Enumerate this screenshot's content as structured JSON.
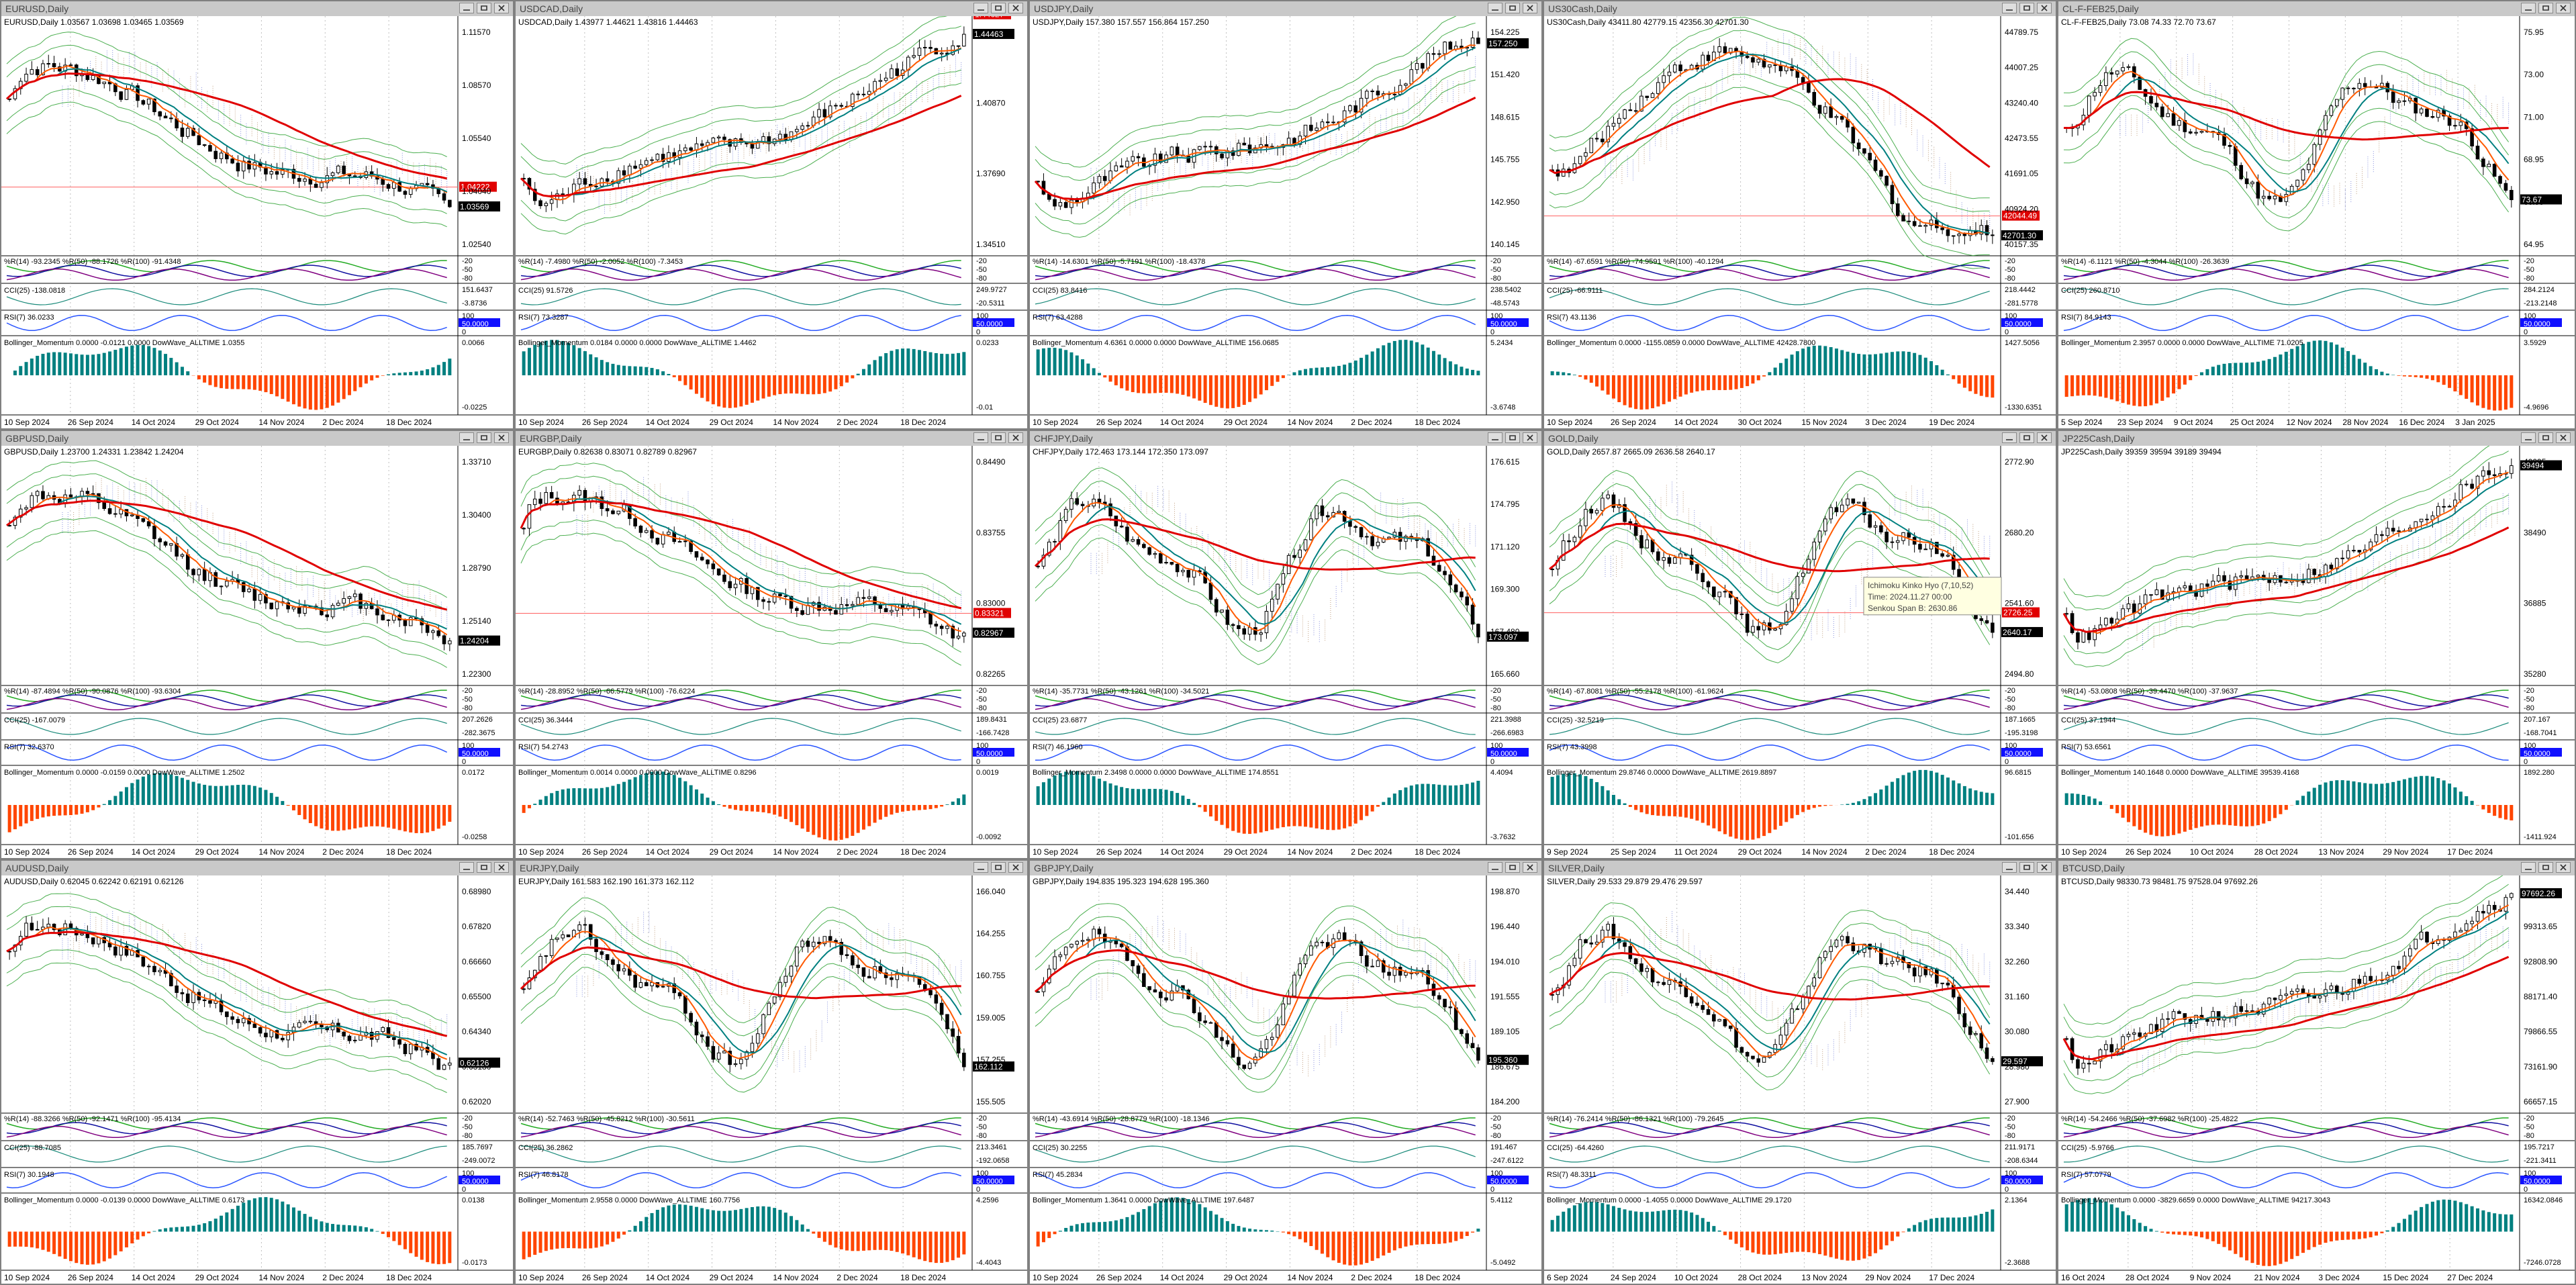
{
  "screen": {
    "title": "MetaTrader 4 - 15 chart windows (Daily)"
  },
  "colors": {
    "ma_red": "#e00000",
    "ma_orange": "#ff5a00",
    "ma_teal": "#008080",
    "envelope": "#4caf50",
    "cloud_brown": "#b48a64",
    "cloud_blue": "#6b77d6",
    "momentum_teal": "#008080",
    "momentum_orange": "#ff4500",
    "wpr_green": "#22aa22",
    "wpr_blue": "#1010a0",
    "wpr_purple": "#800080",
    "rsi_blue": "#2a55ff",
    "cci": "#1a8a7a",
    "price_label": "#000000",
    "level_label": "#e00000",
    "level_line": "#ff6060"
  },
  "window_controls": {
    "minimize_icon": "minimize-icon",
    "restore_icon": "restore-icon",
    "close_icon": "close-icon"
  },
  "charts": [
    {
      "title": "EURUSD,Daily",
      "ohlc": "EURUSD,Daily  1.03567 1.03698 1.03465 1.03569",
      "price_labels": [
        "1.11570",
        "1.08570",
        "1.05540",
        "1.04040",
        "1.02540"
      ],
      "current_price": "1.03569",
      "level_price": "1.04222",
      "wpr": "%R(14) -93.2345  %R(50) -88.1726  %R(100) -91.4348",
      "wpr_scale": [
        "-20",
        "-50",
        "-80"
      ],
      "cci": "CCI(25) -138.0818",
      "cci_scale": [
        "151.6437",
        "-3.8736"
      ],
      "rsi": "RSI(7) 36.0233",
      "rsi_scale": [
        "100",
        "50.0000",
        "0"
      ],
      "momentum": "Bollinger_Momentum 0.0000 -0.0121 0.0000  DowWave_ALLTIME 1.0355",
      "momentum_scale": [
        "0.0066",
        "-0.0225"
      ],
      "dates": [
        "10 Sep 2024",
        "26 Sep 2024",
        "14 Oct 2024",
        "29 Oct 2024",
        "14 Nov 2024",
        "2 Dec 2024",
        "18 Dec 2024"
      ],
      "trend": "down"
    },
    {
      "title": "USDCAD,Daily",
      "ohlc": "USDCAD,Daily  1.43977 1.44621 1.43816 1.44463",
      "price_labels": [
        "1.44200",
        "1.40870",
        "1.37690",
        "1.34510"
      ],
      "current_price": "1.44463",
      "level_price": "1.44627",
      "wpr": "%R(14) -7.4980  %R(50) -2.0052  %R(100) -7.3453",
      "wpr_scale": [
        "-20",
        "-50",
        "-80"
      ],
      "cci": "CCI(25) 91.5726",
      "cci_scale": [
        "249.9727",
        "-20.5311"
      ],
      "rsi": "RSI(7) 73.3287",
      "rsi_scale": [
        "100",
        "50.0000",
        "0"
      ],
      "momentum": "Bollinger_Momentum 0.0184 0.0000 0.0000  DowWave_ALLTIME 1.4462",
      "momentum_scale": [
        "0.0233",
        "-0.01"
      ],
      "dates": [
        "10 Sep 2024",
        "26 Sep 2024",
        "14 Oct 2024",
        "29 Oct 2024",
        "14 Nov 2024",
        "2 Dec 2024",
        "18 Dec 2024"
      ],
      "trend": "up"
    },
    {
      "title": "USDJPY,Daily",
      "ohlc": "USDJPY,Daily  157.380 157.557 156.864 157.250",
      "price_labels": [
        "154.225",
        "151.420",
        "148.615",
        "145.755",
        "142.950",
        "140.145"
      ],
      "current_price": "157.250",
      "level_price": "",
      "wpr": "%R(14) -14.6301  %R(50) -5.7191  %R(100) -18.4378",
      "wpr_scale": [
        "-20",
        "-50",
        "-80"
      ],
      "cci": "CCI(25) 83.8416",
      "cci_scale": [
        "238.5402",
        "-48.5743"
      ],
      "rsi": "RSI(7) 63.4288",
      "rsi_scale": [
        "100",
        "50.0000",
        "0"
      ],
      "momentum": "Bollinger_Momentum 4.6361 0.0000 0.0000  DowWave_ALLTIME 156.0685",
      "momentum_scale": [
        "5.2434",
        "-3.6748"
      ],
      "dates": [
        "10 Sep 2024",
        "26 Sep 2024",
        "14 Oct 2024",
        "29 Oct 2024",
        "14 Nov 2024",
        "2 Dec 2024",
        "18 Dec 2024"
      ],
      "trend": "up"
    },
    {
      "title": "US30Cash,Daily",
      "ohlc": "US30Cash,Daily  43411.80 42779.15 42356.30 42701.30",
      "price_labels": [
        "44789.75",
        "44007.25",
        "43240.40",
        "42473.55",
        "41691.05",
        "40924.20",
        "40157.35"
      ],
      "current_price": "42701.30",
      "level_price": "42044.49",
      "wpr": "%R(14) -67.6591  %R(50) -74.9591  %R(100) -40.1294",
      "wpr_scale": [
        "-20",
        "-50",
        "-80"
      ],
      "cci": "CCI(25) -66.9111",
      "cci_scale": [
        "218.4442",
        "-281.5778"
      ],
      "rsi": "RSI(7) 43.1136",
      "rsi_scale": [
        "100",
        "50.0000",
        "0"
      ],
      "momentum": "Bollinger_Momentum 0.0000 -1155.0859 0.0000  DowWave_ALLTIME 42428.7800",
      "momentum_scale": [
        "1427.5056",
        "-1330.6351"
      ],
      "dates": [
        "10 Sep 2024",
        "26 Sep 2024",
        "14 Oct 2024",
        "30 Oct 2024",
        "15 Nov 2024",
        "3 Dec 2024",
        "19 Dec 2024"
      ],
      "trend": "peak"
    },
    {
      "title": "CL-F-FEB25,Daily",
      "ohlc": "CL-F-FEB25,Daily  73.08 74.33 72.70 73.67",
      "price_labels": [
        "75.95",
        "73.00",
        "71.00",
        "68.95",
        "66.95",
        "64.95"
      ],
      "current_price": "73.67",
      "level_price": "",
      "wpr": "%R(14) -6.1121  %R(50) -4.3044  %R(100) -26.3639",
      "wpr_scale": [
        "-20",
        "-50",
        "-80"
      ],
      "cci": "CCI(25) 260.8710",
      "cci_scale": [
        "284.2124",
        "-213.2148"
      ],
      "rsi": "RSI(7) 84.9143",
      "rsi_scale": [
        "100",
        "50.0000",
        "0"
      ],
      "momentum": "Bollinger_Momentum 2.3957 0.0000 0.0000  DowWave_ALLTIME 71.0205",
      "momentum_scale": [
        "3.5929",
        "-4.9696"
      ],
      "dates": [
        "5 Sep 2024",
        "23 Sep 2024",
        "9 Oct 2024",
        "25 Oct 2024",
        "12 Nov 2024",
        "28 Nov 2024",
        "16 Dec 2024",
        "3 Jan 2025"
      ],
      "trend": "range"
    },
    {
      "title": "GBPUSD,Daily",
      "ohlc": "GBPUSD,Daily  1.23700 1.24331 1.23842 1.24204",
      "price_labels": [
        "1.33710",
        "1.30400",
        "1.28790",
        "1.25140",
        "1.22300"
      ],
      "current_price": "1.24204",
      "level_price": "",
      "wpr": "%R(14) -87.4894  %R(50) -90.0876  %R(100) -93.6304",
      "wpr_scale": [
        "-20",
        "-50",
        "-80"
      ],
      "cci": "CCI(25) -167.0079",
      "cci_scale": [
        "207.2626",
        "-282.3675"
      ],
      "rsi": "RSI(7) 32.6370",
      "rsi_scale": [
        "100",
        "50.0000",
        "0"
      ],
      "momentum": "Bollinger_Momentum 0.0000 -0.0159 0.0000  DowWave_ALLTIME 1.2502",
      "momentum_scale": [
        "0.0172",
        "-0.0258"
      ],
      "dates": [
        "10 Sep 2024",
        "26 Sep 2024",
        "14 Oct 2024",
        "29 Oct 2024",
        "14 Nov 2024",
        "2 Dec 2024",
        "18 Dec 2024"
      ],
      "trend": "down"
    },
    {
      "title": "EURGBP,Daily",
      "ohlc": "EURGBP,Daily  0.82638 0.83071 0.82789 0.82967",
      "price_labels": [
        "0.84490",
        "0.83755",
        "0.83000",
        "0.82265"
      ],
      "current_price": "0.82967",
      "level_price": "0.83321",
      "wpr": "%R(14) -28.8952  %R(50) -66.5779  %R(100) -76.6224",
      "wpr_scale": [
        "-20",
        "-50",
        "-80"
      ],
      "cci": "CCI(25) 36.3444",
      "cci_scale": [
        "189.8431",
        "-166.7428"
      ],
      "rsi": "RSI(7) 54.2743",
      "rsi_scale": [
        "100",
        "50.0000",
        "0"
      ],
      "momentum": "Bollinger_Momentum 0.0014 0.0000 0.0000  DowWave_ALLTIME 0.8296",
      "momentum_scale": [
        "0.0019",
        "-0.0092"
      ],
      "dates": [
        "10 Sep 2024",
        "26 Sep 2024",
        "14 Oct 2024",
        "29 Oct 2024",
        "14 Nov 2024",
        "2 Dec 2024",
        "18 Dec 2024"
      ],
      "trend": "down"
    },
    {
      "title": "CHFJPY,Daily",
      "ohlc": "CHFJPY,Daily  172.463 173.144 172.350 173.097",
      "price_labels": [
        "176.615",
        "174.795",
        "171.120",
        "169.300",
        "167.480",
        "165.660"
      ],
      "current_price": "173.097",
      "level_price": "",
      "wpr": "%R(14) -35.7731  %R(50) -43.1261  %R(100) -34.5021",
      "wpr_scale": [
        "-20",
        "-50",
        "-80"
      ],
      "cci": "CCI(25) 23.6877",
      "cci_scale": [
        "221.3988",
        "-266.6983"
      ],
      "rsi": "RSI(7) 46.1960",
      "rsi_scale": [
        "100",
        "50.0000",
        "0"
      ],
      "momentum": "Bollinger_Momentum 2.3498 0.0000 0.0000  DowWave_ALLTIME 174.8551",
      "momentum_scale": [
        "4.4094",
        "-3.7632"
      ],
      "dates": [
        "10 Sep 2024",
        "26 Sep 2024",
        "14 Oct 2024",
        "29 Oct 2024",
        "14 Nov 2024",
        "2 Dec 2024",
        "18 Dec 2024"
      ],
      "trend": "range"
    },
    {
      "title": "GOLD,Daily",
      "ohlc": "GOLD,Daily  2657.87 2665.09 2636.58 2640.17",
      "price_labels": [
        "2772.90",
        "2680.20",
        "2541.60",
        "2494.80"
      ],
      "current_price": "2640.17",
      "level_price": "2726.25",
      "wpr": "%R(14) -67.8081  %R(50) -55.2178  %R(100) -61.9624",
      "wpr_scale": [
        "-20",
        "-50",
        "-80"
      ],
      "cci": "CCI(25) -32.5219",
      "cci_scale": [
        "187.1665",
        "-195.3198"
      ],
      "rsi": "RSI(7) 43.3998",
      "rsi_scale": [
        "100",
        "50.0000",
        "0"
      ],
      "momentum": "Bollinger_Momentum 29.8746 0.0000  DowWave_ALLTIME 2619.8897",
      "momentum_scale": [
        "96.6815",
        "-101.656"
      ],
      "dates": [
        "9 Sep 2024",
        "25 Sep 2024",
        "11 Oct 2024",
        "29 Oct 2024",
        "14 Nov 2024",
        "2 Dec 2024",
        "18 Dec 2024"
      ],
      "tooltip": [
        "Ichimoku Kinko Hyo (7,10,52)",
        "Time: 2024.11.27 00:00",
        "Senkou Span B: 2630.86"
      ],
      "trend": "range"
    },
    {
      "title": "JP225Cash,Daily",
      "ohlc": "JP225Cash,Daily  39359 39594 39189 39494",
      "price_labels": [
        "40095",
        "38490",
        "36885",
        "35280"
      ],
      "current_price": "39494",
      "level_price": "",
      "wpr": "%R(14) -53.0808  %R(50) -39.4470  %R(100) -37.9637",
      "wpr_scale": [
        "-20",
        "-50",
        "-80"
      ],
      "cci": "CCI(25) 37.1944",
      "cci_scale": [
        "207.167",
        "-168.7041"
      ],
      "rsi": "RSI(7) 53.6561",
      "rsi_scale": [
        "100",
        "50.0000",
        "0"
      ],
      "momentum": "Bollinger_Momentum 140.1648 0.0000  DowWave_ALLTIME 39539.4168",
      "momentum_scale": [
        "1892.280",
        "-1411.924"
      ],
      "dates": [
        "10 Sep 2024",
        "26 Sep 2024",
        "10 Oct 2024",
        "28 Oct 2024",
        "13 Nov 2024",
        "29 Nov 2024",
        "17 Dec 2024"
      ],
      "trend": "up"
    },
    {
      "title": "AUDUSD,Daily",
      "ohlc": "AUDUSD,Daily  0.62045 0.62242 0.62191 0.62126",
      "price_labels": [
        "0.68980",
        "0.67820",
        "0.66660",
        "0.65500",
        "0.64340",
        "0.63180",
        "0.62020"
      ],
      "current_price": "0.62126",
      "level_price": "",
      "wpr": "%R(14) -88.3266  %R(50) -92.1471  %R(100) -95.4134",
      "wpr_scale": [
        "-20",
        "-50",
        "-80"
      ],
      "cci": "CCI(25) -88.7085",
      "cci_scale": [
        "185.7697",
        "-249.0072"
      ],
      "rsi": "RSI(7) 30.1948",
      "rsi_scale": [
        "100",
        "50.0000",
        "0"
      ],
      "momentum": "Bollinger_Momentum 0.0000 -0.0139 0.0000  DowWave_ALLTIME 0.6173",
      "momentum_scale": [
        "0.0138",
        "-0.0173"
      ],
      "dates": [
        "10 Sep 2024",
        "26 Sep 2024",
        "14 Oct 2024",
        "29 Oct 2024",
        "14 Nov 2024",
        "2 Dec 2024",
        "18 Dec 2024"
      ],
      "trend": "down"
    },
    {
      "title": "EURJPY,Daily",
      "ohlc": "EURJPY,Daily  161.583 162.190 161.373 162.112",
      "price_labels": [
        "166.040",
        "164.255",
        "160.755",
        "159.005",
        "157.255",
        "155.505"
      ],
      "current_price": "162.112",
      "level_price": "",
      "wpr": "%R(14) -52.7463  %R(50) -45.8212  %R(100) -30.5611",
      "wpr_scale": [
        "-20",
        "-50",
        "-80"
      ],
      "cci": "CCI(25) 36.2862",
      "cci_scale": [
        "213.3461",
        "-192.0658"
      ],
      "rsi": "RSI(7) 46.8178",
      "rsi_scale": [
        "100",
        "50.0000",
        "0"
      ],
      "momentum": "Bollinger_Momentum 2.9558 0.0000  DowWave_ALLTIME 160.7756",
      "momentum_scale": [
        "4.2596",
        "-4.4043"
      ],
      "dates": [
        "10 Sep 2024",
        "26 Sep 2024",
        "14 Oct 2024",
        "29 Oct 2024",
        "14 Nov 2024",
        "2 Dec 2024",
        "18 Dec 2024"
      ],
      "trend": "range"
    },
    {
      "title": "GBPJPY,Daily",
      "ohlc": "GBPJPY,Daily  194.835 195.323 194.628 195.360",
      "price_labels": [
        "198.870",
        "196.440",
        "194.010",
        "191.555",
        "189.105",
        "186.675",
        "184.200"
      ],
      "current_price": "195.360",
      "level_price": "",
      "wpr": "%R(14) -43.6914  %R(50) -28.8779  %R(100) -18.1346",
      "wpr_scale": [
        "-20",
        "-50",
        "-80"
      ],
      "cci": "CCI(25) 30.2255",
      "cci_scale": [
        "191.467",
        "-247.6122"
      ],
      "rsi": "RSI(7) 45.2834",
      "rsi_scale": [
        "100",
        "50.0000",
        "0"
      ],
      "momentum": "Bollinger_Momentum 1.3641 0.0000  DowWave_ALLTIME 197.6487",
      "momentum_scale": [
        "5.4112",
        "-5.0492"
      ],
      "dates": [
        "10 Sep 2024",
        "26 Sep 2024",
        "14 Oct 2024",
        "29 Oct 2024",
        "14 Nov 2024",
        "2 Dec 2024",
        "18 Dec 2024"
      ],
      "trend": "range"
    },
    {
      "title": "SILVER,Daily",
      "ohlc": "SILVER,Daily  29.533 29.879 29.476 29.597",
      "price_labels": [
        "34.440",
        "33.340",
        "32.260",
        "31.160",
        "30.080",
        "28.980",
        "27.900"
      ],
      "current_price": "29.597",
      "level_price": "",
      "wpr": "%R(14) -76.2414  %R(50) -86.1321  %R(100) -79.2645",
      "wpr_scale": [
        "-20",
        "-50",
        "-80"
      ],
      "cci": "CCI(25) -64.4260",
      "cci_scale": [
        "211.9171",
        "-208.6344"
      ],
      "rsi": "RSI(7) 48.3311",
      "rsi_scale": [
        "100",
        "50.0000",
        "0"
      ],
      "momentum": "Bollinger_Momentum 0.0000 -1.4055 0.0000  DowWave_ALLTIME 29.1720",
      "momentum_scale": [
        "2.1364",
        "-2.3688"
      ],
      "dates": [
        "6 Sep 2024",
        "24 Sep 2024",
        "10 Oct 2024",
        "28 Oct 2024",
        "13 Nov 2024",
        "29 Nov 2024",
        "17 Dec 2024"
      ],
      "trend": "range"
    },
    {
      "title": "BTCUSD,Daily",
      "ohlc": "BTCUSD,Daily  98330.73 98481.75 97528.04 97692.26",
      "price_labels": [
        "105818.40",
        "99313.65",
        "92808.90",
        "88171.40",
        "79866.55",
        "73161.90",
        "66657.15"
      ],
      "current_price": "97692.26",
      "level_price": "",
      "wpr": "%R(14) -54.2466  %R(50) -37.6982  %R(100) -25.4822",
      "wpr_scale": [
        "-20",
        "-50",
        "-80"
      ],
      "cci": "CCI(25) -5.9766",
      "cci_scale": [
        "195.7217",
        "-221.3411"
      ],
      "rsi": "RSI(7) 57.0779",
      "rsi_scale": [
        "100",
        "50.0000",
        "0"
      ],
      "momentum": "Bollinger_Momentum 0.0000 -3829.6659 0.0000  DowWave_ALLTIME 94217.3043",
      "momentum_scale": [
        "16342.0846",
        "-7246.0728"
      ],
      "dates": [
        "16 Oct 2024",
        "28 Oct 2024",
        "9 Nov 2024",
        "21 Nov 2024",
        "3 Dec 2024",
        "15 Dec 2024",
        "27 Dec 2024"
      ],
      "trend": "up"
    }
  ]
}
